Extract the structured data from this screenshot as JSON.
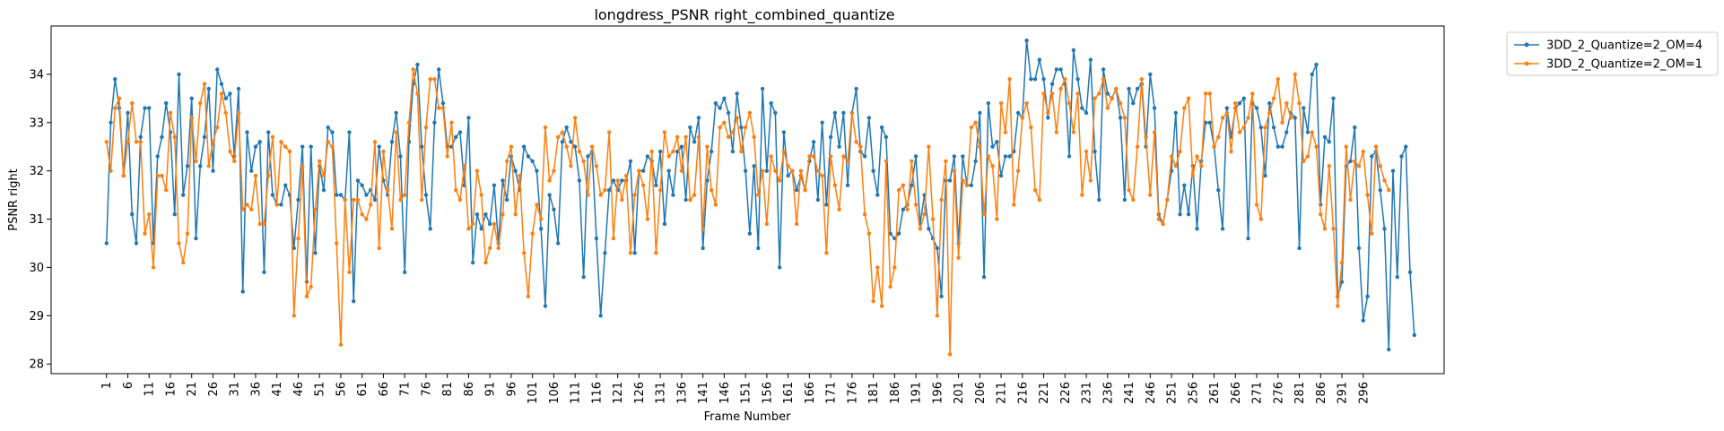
{
  "chart_data": {
    "type": "line",
    "title": "longdress_PSNR right_combined_quantize",
    "xlabel": "Frame Number",
    "ylabel": "PSNR right",
    "xlim": [
      -12,
      315
    ],
    "ylim": [
      27.8,
      35.0
    ],
    "x_ticks": [
      1,
      6,
      11,
      16,
      21,
      26,
      31,
      36,
      41,
      46,
      51,
      56,
      61,
      66,
      71,
      76,
      81,
      86,
      91,
      96,
      101,
      106,
      111,
      116,
      121,
      126,
      131,
      136,
      141,
      146,
      151,
      156,
      161,
      166,
      171,
      176,
      181,
      186,
      191,
      196,
      201,
      206,
      211,
      216,
      221,
      226,
      231,
      236,
      241,
      246,
      251,
      256,
      261,
      266,
      271,
      276,
      281,
      286,
      291,
      296
    ],
    "y_ticks": [
      28,
      29,
      30,
      31,
      32,
      33,
      34
    ],
    "legend_position": "outside-top-right",
    "grid": false,
    "series": [
      {
        "name": "3DD_2_Quantize=2_OM=4",
        "color": "#1f77b4",
        "x_start": 1,
        "values": [
          30.5,
          33.0,
          33.9,
          33.3,
          31.9,
          33.2,
          31.1,
          30.5,
          32.7,
          33.3,
          33.3,
          30.5,
          32.3,
          32.7,
          33.4,
          32.8,
          31.1,
          34.0,
          31.5,
          32.1,
          33.5,
          30.6,
          32.1,
          32.7,
          33.7,
          32.0,
          34.1,
          33.8,
          33.5,
          33.6,
          32.3,
          33.7,
          29.5,
          32.8,
          32.0,
          32.5,
          32.6,
          29.9,
          32.8,
          31.5,
          31.3,
          31.3,
          31.7,
          31.5,
          30.4,
          31.4,
          32.5,
          29.7,
          32.5,
          30.3,
          32.1,
          31.6,
          32.9,
          32.8,
          31.5,
          31.5,
          31.4,
          32.8,
          29.3,
          31.8,
          31.7,
          31.5,
          31.6,
          31.4,
          32.5,
          31.8,
          31.5,
          32.6,
          33.2,
          32.3,
          29.9,
          32.6,
          33.8,
          34.2,
          32.5,
          31.5,
          30.8,
          33.0,
          34.1,
          33.4,
          32.5,
          32.5,
          32.7,
          32.8,
          31.7,
          33.1,
          30.1,
          31.1,
          30.8,
          31.1,
          30.9,
          31.7,
          30.5,
          31.8,
          31.4,
          32.3,
          32.0,
          31.6,
          32.5,
          32.3,
          32.2,
          32.0,
          30.8,
          29.2,
          31.5,
          31.2,
          30.5,
          32.6,
          32.9,
          32.6,
          32.5,
          31.8,
          29.8,
          32.3,
          32.4,
          30.6,
          29.0,
          30.3,
          31.6,
          31.8,
          31.6,
          31.8,
          31.8,
          32.2,
          30.3,
          32.0,
          32.0,
          32.3,
          32.2,
          31.7,
          32.4,
          30.9,
          32.0,
          31.5,
          32.4,
          32.5,
          31.4,
          32.9,
          32.6,
          33.1,
          30.4,
          31.8,
          32.4,
          33.4,
          33.3,
          33.5,
          33.2,
          32.4,
          33.6,
          32.9,
          32.0,
          30.7,
          32.1,
          30.4,
          33.7,
          32.0,
          33.4,
          33.2,
          30.0,
          32.8,
          31.9,
          32.0,
          31.6,
          31.9,
          31.6,
          32.2,
          32.6,
          31.4,
          33.0,
          31.3,
          32.7,
          33.2,
          32.5,
          33.2,
          31.7,
          33.2,
          33.7,
          32.4,
          32.3,
          33.1,
          32.0,
          31.5,
          32.9,
          32.7,
          30.7,
          30.6,
          30.7,
          31.2,
          31.3,
          31.7,
          32.3,
          30.9,
          31.5,
          30.8,
          30.6,
          30.4,
          29.4,
          31.8,
          31.8,
          32.3,
          30.5,
          32.3,
          31.7,
          31.7,
          32.2,
          33.2,
          29.8,
          33.4,
          32.5,
          32.6,
          31.9,
          32.3,
          32.3,
          32.4,
          33.2,
          33.1,
          34.7,
          33.9,
          33.9,
          34.3,
          33.9,
          33.1,
          33.8,
          34.1,
          34.1,
          33.8,
          32.3,
          34.5,
          33.9,
          33.3,
          33.2,
          34.3,
          32.4,
          31.4,
          34.1,
          33.6,
          33.5,
          33.7,
          33.1,
          31.4,
          33.7,
          33.4,
          33.7,
          33.8,
          32.5,
          34.0,
          33.3,
          31.1,
          30.9,
          31.4,
          32.0,
          33.2,
          31.1,
          31.7,
          31.1,
          32.1,
          30.8,
          32.2,
          33.0,
          33.0,
          32.5,
          31.6,
          30.8,
          33.3,
          32.7,
          33.3,
          33.4,
          33.5,
          30.6,
          33.4,
          33.3,
          32.9,
          31.9,
          33.4,
          32.9,
          32.5,
          32.5,
          32.8,
          33.2,
          33.1,
          30.4,
          33.3,
          32.8,
          34.0,
          34.2,
          31.3,
          32.7,
          32.6,
          33.5,
          29.4,
          29.7,
          32.1,
          32.2,
          32.9,
          30.4,
          28.9,
          29.4,
          32.3,
          32.4,
          31.6,
          30.8,
          28.3,
          32.0,
          29.8,
          32.3,
          32.5,
          29.9,
          28.6
        ]
      },
      {
        "name": "3DD_2_Quantize=2_OM=1",
        "color": "#ff7f0e",
        "x_start": 1,
        "values": [
          32.6,
          32.0,
          33.3,
          33.5,
          31.9,
          32.6,
          33.4,
          32.6,
          32.6,
          30.7,
          31.1,
          30.0,
          31.9,
          31.9,
          31.6,
          33.2,
          32.7,
          30.5,
          30.1,
          30.7,
          33.1,
          32.2,
          33.4,
          33.8,
          32.1,
          32.6,
          32.9,
          33.6,
          33.2,
          32.4,
          32.2,
          33.2,
          31.2,
          31.3,
          31.2,
          31.9,
          30.9,
          30.9,
          31.9,
          32.7,
          31.3,
          32.6,
          32.5,
          32.4,
          29.0,
          30.6,
          32.1,
          29.4,
          29.6,
          31.2,
          32.2,
          31.9,
          32.6,
          32.5,
          30.5,
          28.4,
          31.4,
          29.9,
          31.4,
          31.4,
          31.1,
          31.0,
          31.3,
          32.6,
          30.4,
          32.4,
          31.6,
          30.8,
          32.8,
          31.4,
          31.5,
          33.0,
          34.1,
          33.6,
          31.4,
          32.9,
          33.9,
          33.9,
          33.3,
          33.3,
          32.3,
          33.0,
          31.6,
          31.4,
          32.1,
          30.8,
          30.9,
          32.0,
          31.5,
          30.1,
          30.4,
          30.9,
          30.4,
          31.1,
          32.2,
          32.5,
          31.1,
          31.9,
          30.3,
          29.4,
          30.7,
          31.3,
          31.0,
          32.9,
          31.8,
          32.0,
          32.7,
          32.8,
          32.5,
          32.1,
          33.1,
          32.4,
          32.2,
          31.5,
          32.5,
          32.1,
          31.5,
          31.6,
          32.8,
          30.6,
          31.8,
          31.4,
          31.9,
          30.3,
          31.5,
          32.0,
          31.7,
          31.0,
          32.4,
          30.3,
          31.6,
          32.8,
          32.3,
          32.4,
          32.7,
          32.0,
          32.7,
          31.4,
          31.5,
          32.7,
          30.8,
          32.5,
          31.6,
          31.3,
          32.9,
          33.0,
          32.7,
          32.8,
          33.1,
          32.4,
          32.9,
          33.2,
          32.7,
          31.5,
          32.0,
          30.9,
          32.3,
          32.0,
          31.8,
          32.4,
          32.1,
          32.0,
          30.9,
          32.0,
          31.6,
          32.3,
          32.3,
          32.0,
          31.9,
          30.3,
          32.3,
          31.7,
          31.2,
          32.3,
          32.2,
          33.2,
          32.6,
          32.5,
          31.1,
          30.7,
          29.3,
          30.0,
          29.2,
          32.2,
          29.6,
          30.0,
          31.6,
          31.7,
          31.2,
          32.2,
          31.3,
          30.8,
          31.1,
          32.5,
          31.0,
          29.0,
          31.4,
          32.2,
          28.2,
          32.0,
          30.2,
          31.8,
          31.7,
          32.9,
          33.0,
          32.5,
          31.1,
          32.3,
          32.1,
          31.0,
          33.4,
          32.8,
          33.9,
          31.3,
          32.0,
          33.1,
          33.4,
          32.9,
          31.6,
          31.4,
          33.6,
          33.2,
          33.6,
          32.8,
          33.7,
          33.9,
          33.4,
          32.8,
          33.6,
          31.5,
          32.4,
          31.8,
          33.5,
          33.6,
          33.9,
          33.3,
          33.5,
          33.7,
          33.4,
          33.1,
          31.6,
          31.4,
          32.5,
          33.9,
          32.7,
          31.5,
          32.8,
          31.0,
          30.9,
          31.4,
          32.3,
          32.1,
          32.4,
          33.3,
          33.5,
          31.9,
          32.3,
          32.1,
          33.6,
          33.6,
          32.5,
          32.7,
          33.1,
          33.2,
          32.4,
          33.4,
          32.8,
          32.9,
          33.1,
          33.6,
          31.3,
          31.0,
          32.9,
          33.2,
          33.5,
          33.9,
          33.0,
          33.4,
          33.1,
          34.0,
          33.4,
          32.2,
          32.3,
          32.8,
          32.5,
          31.1,
          30.8,
          32.1,
          30.8,
          29.2,
          30.1,
          32.5,
          31.4,
          32.2,
          32.1,
          32.4,
          31.5,
          30.7,
          32.5,
          32.1,
          31.8,
          31.6
        ]
      }
    ]
  }
}
